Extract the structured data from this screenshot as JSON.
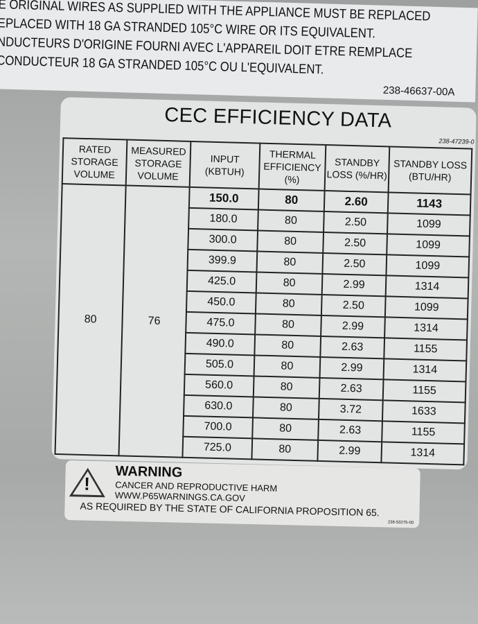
{
  "top_label": {
    "lines": [
      "E ORIGINAL WIRES AS SUPPLIED WITH THE APPLIANCE MUST BE REPLACED",
      "EPLACED WITH 18 GA STRANDED 105°C WIRE OR ITS EQUIVALENT.",
      "NDUCTEURS D'ORIGINE FOURNI AVEC L'APPAREIL DOIT ETRE REMPLACE",
      "CONDUCTEUR 18 GA STRANDED 105°C OU L'EQUIVALENT."
    ],
    "part_number": "238-46637-00A"
  },
  "cec": {
    "title": "CEC EFFICIENCY DATA",
    "part_number": "238-47239-0",
    "headers": [
      "RATED STORAGE VOLUME",
      "MEASURED STORAGE VOLUME",
      "INPUT (KBTUH)",
      "THERMAL EFFICIENCY (%)",
      "STANDBY LOSS (%/HR)",
      "STANDBY LOSS (BTU/HR)"
    ],
    "rated_storage_volume": "80",
    "measured_storage_volume": "76",
    "rows": [
      [
        "150.0",
        "80",
        "2.60",
        "1143"
      ],
      [
        "180.0",
        "80",
        "2.50",
        "1099"
      ],
      [
        "300.0",
        "80",
        "2.50",
        "1099"
      ],
      [
        "399.9",
        "80",
        "2.50",
        "1099"
      ],
      [
        "425.0",
        "80",
        "2.99",
        "1314"
      ],
      [
        "450.0",
        "80",
        "2.50",
        "1099"
      ],
      [
        "475.0",
        "80",
        "2.99",
        "1314"
      ],
      [
        "490.0",
        "80",
        "2.63",
        "1155"
      ],
      [
        "505.0",
        "80",
        "2.99",
        "1314"
      ],
      [
        "560.0",
        "80",
        "2.63",
        "1155"
      ],
      [
        "630.0",
        "80",
        "3.72",
        "1633"
      ],
      [
        "700.0",
        "80",
        "2.63",
        "1155"
      ],
      [
        "725.0",
        "80",
        "2.99",
        "1314"
      ]
    ]
  },
  "warning": {
    "title": "WARNING",
    "line1": "CANCER AND REPRODUCTIVE HARM",
    "line2": "WWW.P65WARNINGS.CA.GOV",
    "line3": "AS REQUIRED BY THE STATE OF CALIFORNIA PROPOSITION 65.",
    "part_number": "238-53275-00"
  }
}
